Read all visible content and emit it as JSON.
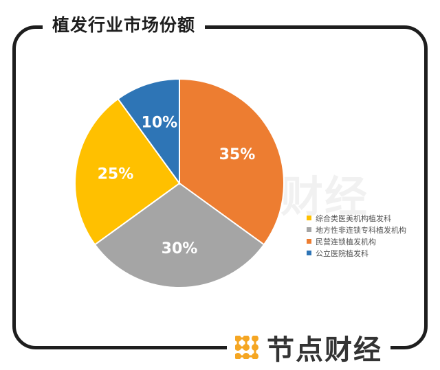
{
  "title": "植发行业市场份额",
  "watermark": "财经",
  "brand": {
    "name": "节点财经",
    "logo_color": "#F5A623"
  },
  "chart_data": {
    "type": "pie",
    "title": "植发行业市场份额",
    "start": "top",
    "direction": "clockwise",
    "slices": [
      {
        "label": "民营连锁植发机构",
        "value": 35,
        "data_label": "35%",
        "color": "#ED7D31"
      },
      {
        "label": "地方性非连锁专科植发机构",
        "value": 30,
        "data_label": "30%",
        "color": "#A5A5A5"
      },
      {
        "label": "综合类医美机构植发科",
        "value": 25,
        "data_label": "25%",
        "color": "#FFC000"
      },
      {
        "label": "公立医院植发科",
        "value": 10,
        "data_label": "10%",
        "color": "#2E75B6"
      }
    ],
    "legend_order": [
      2,
      1,
      0,
      3
    ],
    "legend_position": "right"
  }
}
